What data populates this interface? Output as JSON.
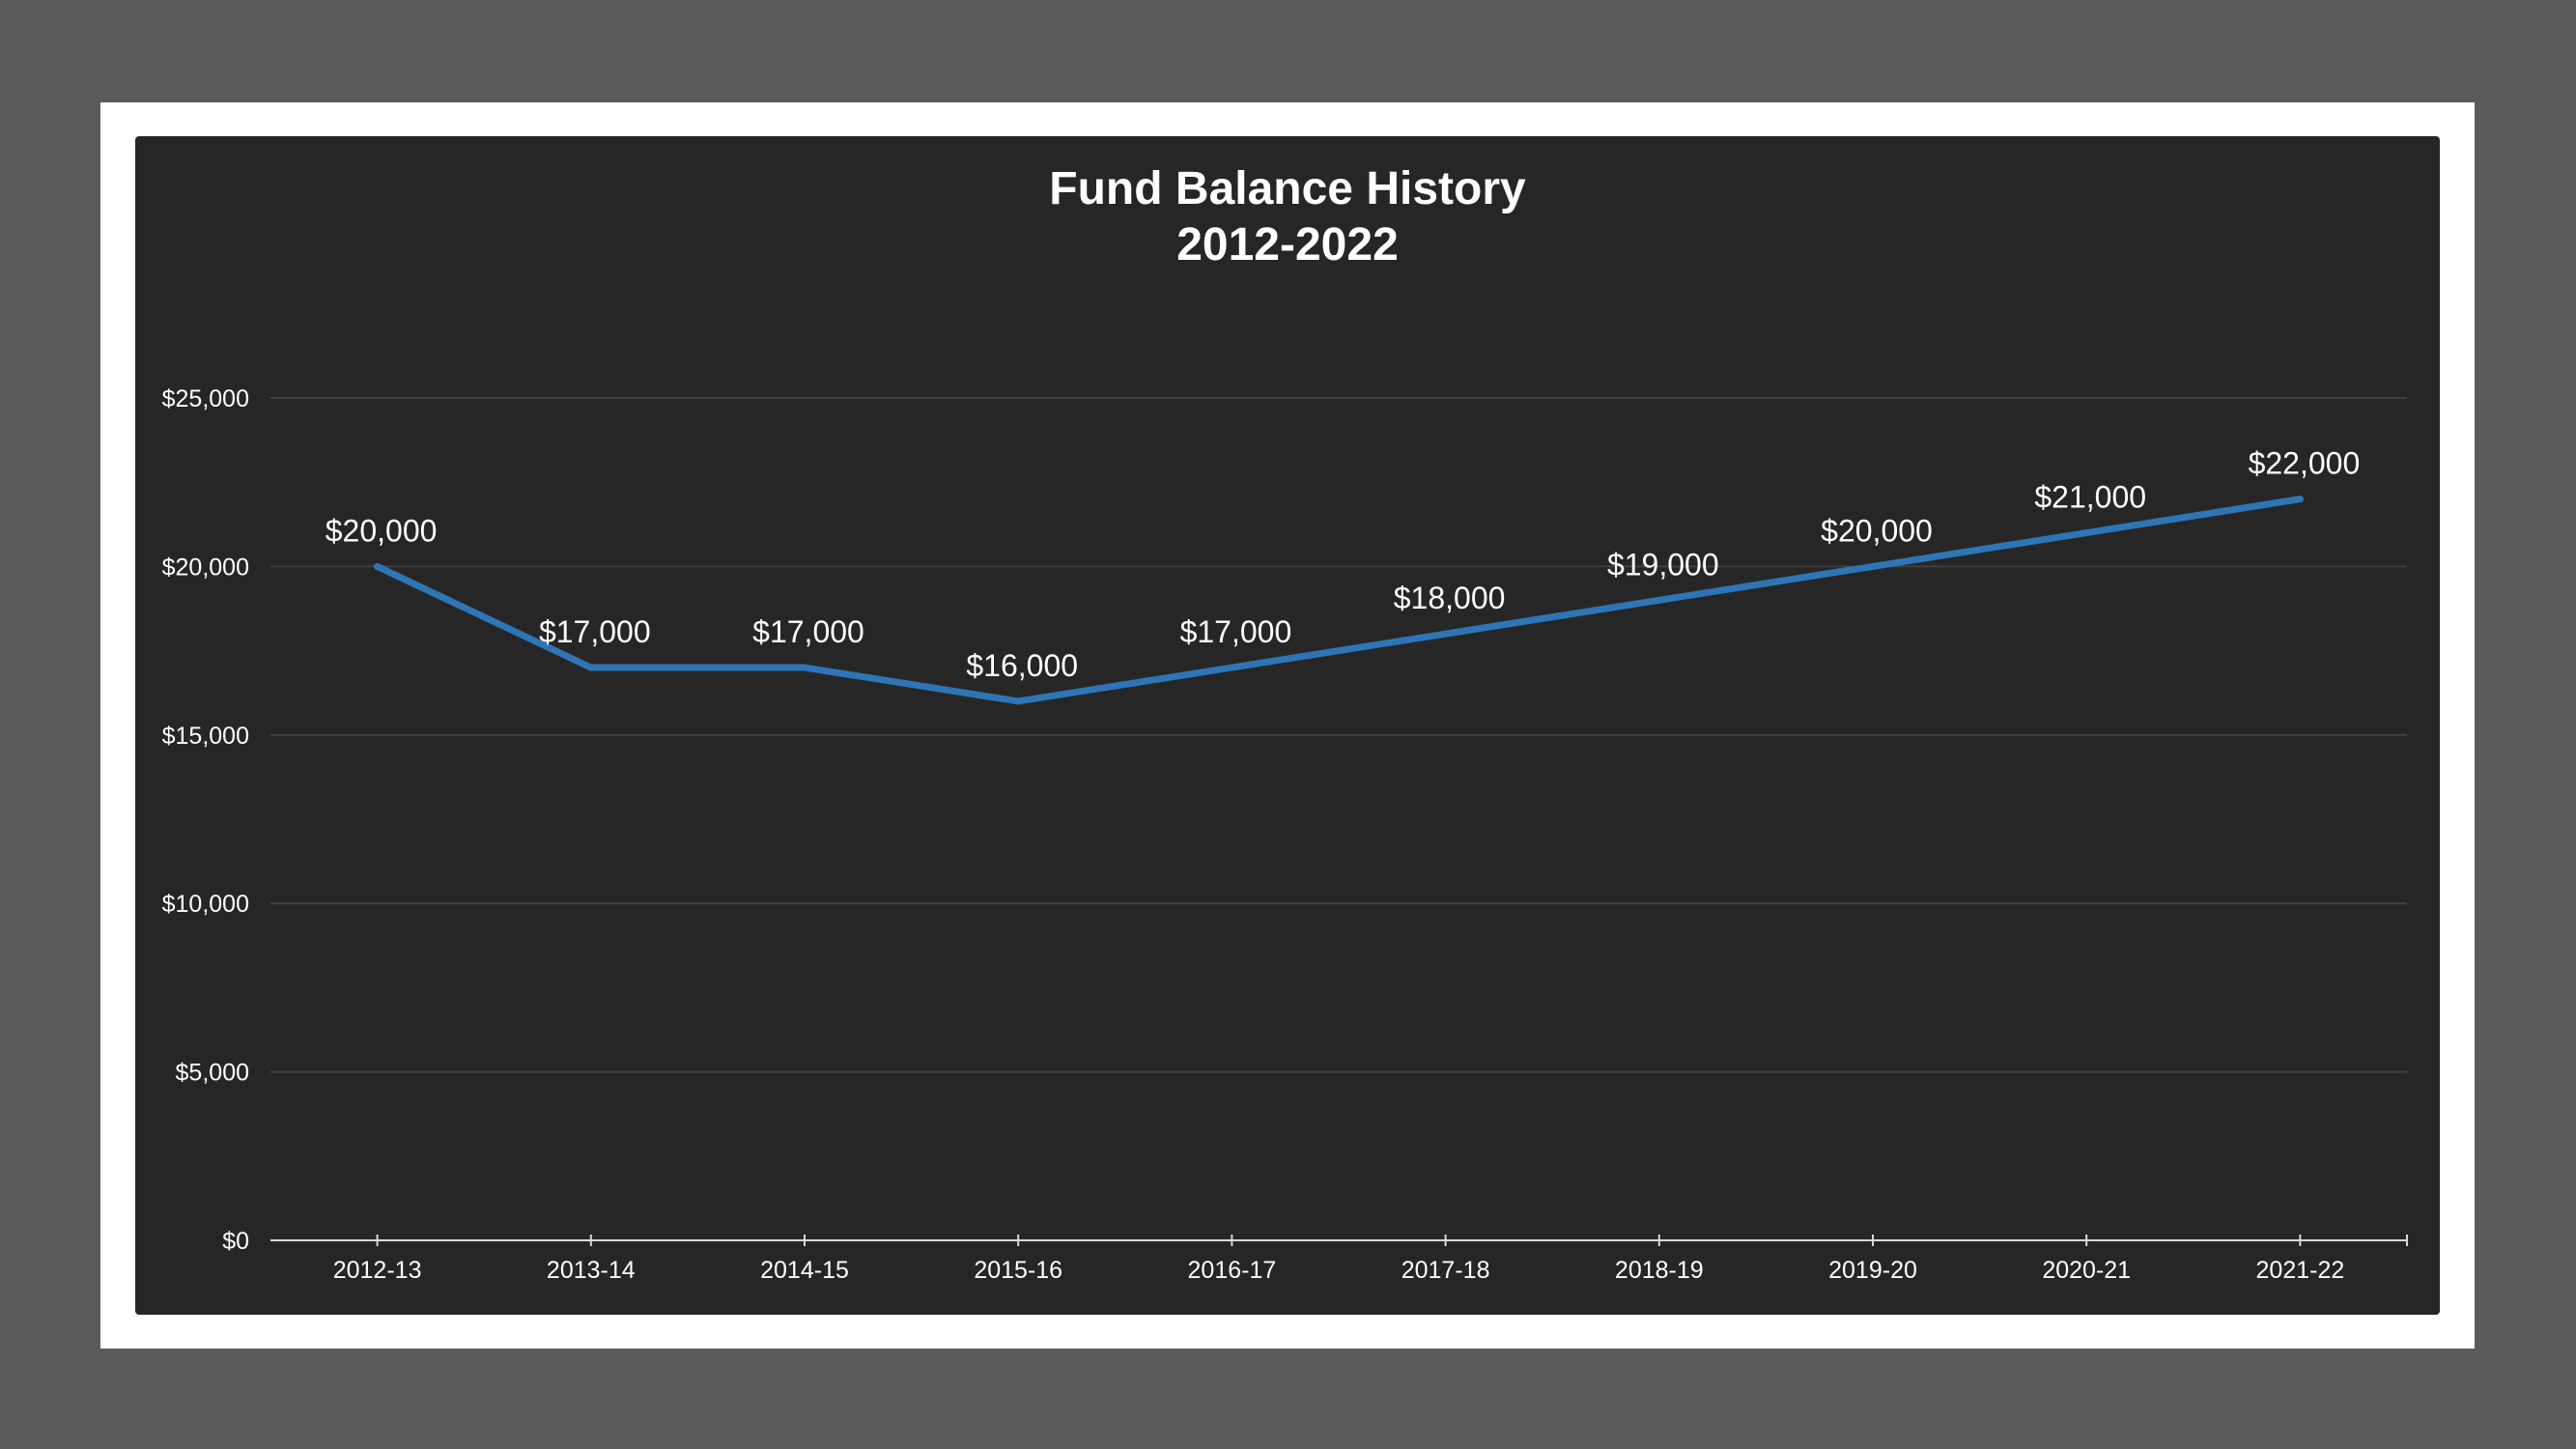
{
  "chart_data": {
    "type": "line",
    "title": "Fund Balance History",
    "subtitle": "2012-2022",
    "xlabel": "",
    "ylabel": "",
    "categories": [
      "2012-13",
      "2013-14",
      "2014-15",
      "2015-16",
      "2016-17",
      "2017-18",
      "2018-19",
      "2019-20",
      "2020-21",
      "2021-22"
    ],
    "series": [
      {
        "values": [
          20000,
          17000,
          17000,
          16000,
          17000,
          18000,
          19000,
          20000,
          21000,
          22000
        ],
        "data_labels": [
          "$20,000",
          "$17,000",
          "$17,000",
          "$16,000",
          "$17,000",
          "$18,000",
          "$19,000",
          "$20,000",
          "$21,000",
          "$22,000"
        ],
        "color": "#2e75b6"
      }
    ],
    "ylim": [
      0,
      25000
    ],
    "yticks": [
      0,
      5000,
      10000,
      15000,
      20000,
      25000
    ],
    "ytick_labels": [
      "$0",
      "$5,000",
      "$10,000",
      "$15,000",
      "$20,000",
      "$25,000"
    ],
    "grid": "horizontal",
    "legend": "none",
    "colors": {
      "background": "#262626",
      "frame": "#ffffff",
      "outer": "#5a5a5a",
      "gridline": "#404040",
      "axis": "#d9d9d9",
      "text": "#ffffff"
    }
  }
}
